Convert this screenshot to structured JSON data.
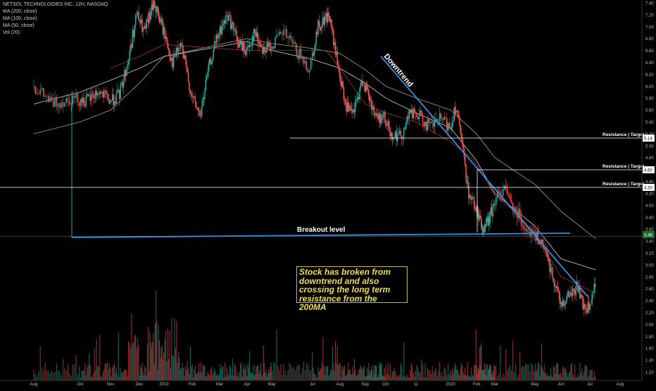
{
  "legend": {
    "title": "NETSOL TECHNOLOGIES INC, 12H, NASDAQ",
    "ma200": "MA (200, close)",
    "ma100": "MA (100, close)",
    "ma50": "MA (50, close)",
    "vol": "Vol (20)"
  },
  "annotations": {
    "downtrend": "Downtrend",
    "breakout": "Breakout level",
    "resistance1": "Resistance | Target",
    "resistance2": "Resistance | Target",
    "resistance3": "Resistance | Target",
    "note": "Stock has broken from downtrend and also crossing the long term resistance from the 200MA"
  },
  "colors": {
    "background": "#000000",
    "up_candle": "#26a69a",
    "down_candle": "#ef5350",
    "ma200": "#c9b46a",
    "ma100": "#e8e8e8",
    "ma50": "#c0392b",
    "trendline": "#2f8fe0",
    "level_line": "#ffffff",
    "note_text": "#f3df4a"
  },
  "chart_data": {
    "type": "candlestick",
    "x_tick_labels": [
      "Aug",
      "Oct",
      "Nov",
      "Dec",
      "2019",
      "Feb",
      "Mar",
      "Apr",
      "May",
      "Jul",
      "Aug",
      "Sep",
      "Oct",
      "11",
      "2020",
      "Feb",
      "Mar",
      "May",
      "Jun",
      "Jul",
      "Aug"
    ],
    "y_tick_labels": [
      "1.20",
      "1.40",
      "1.60",
      "1.80",
      "2.00",
      "2.20",
      "2.40",
      "2.60",
      "2.80",
      "3.00",
      "3.20",
      "3.40",
      "3.60",
      "3.80",
      "4.00",
      "4.20",
      "4.40",
      "4.60",
      "4.80",
      "5.00",
      "5.20",
      "5.40",
      "5.60",
      "5.80",
      "6.00",
      "6.20",
      "6.40",
      "6.60",
      "6.80",
      "7.00",
      "7.20",
      "7.40"
    ],
    "ylim": [
      1.1,
      7.45
    ],
    "price_path": [
      [
        0.0,
        6.0
      ],
      [
        0.4,
        5.7
      ],
      [
        0.8,
        5.8
      ],
      [
        1.2,
        5.75
      ],
      [
        1.6,
        5.9
      ],
      [
        2.0,
        5.75
      ],
      [
        2.3,
        5.85
      ],
      [
        2.6,
        6.4
      ],
      [
        2.9,
        7.2
      ],
      [
        3.2,
        6.9
      ],
      [
        3.6,
        7.4
      ],
      [
        4.0,
        6.9
      ],
      [
        4.3,
        6.4
      ],
      [
        4.6,
        6.7
      ],
      [
        5.0,
        5.8
      ],
      [
        5.3,
        5.5
      ],
      [
        5.6,
        6.3
      ],
      [
        5.9,
        6.8
      ],
      [
        6.3,
        7.2
      ],
      [
        6.7,
        6.7
      ],
      [
        7.0,
        6.6
      ],
      [
        7.3,
        6.9
      ],
      [
        7.7,
        6.6
      ],
      [
        8.0,
        6.7
      ],
      [
        8.3,
        6.9
      ],
      [
        8.6,
        6.6
      ],
      [
        8.9,
        6.3
      ],
      [
        9.2,
        7.0
      ],
      [
        9.6,
        7.2
      ],
      [
        9.9,
        6.4
      ],
      [
        10.2,
        5.7
      ],
      [
        10.5,
        5.5
      ],
      [
        10.9,
        6.1
      ],
      [
        11.3,
        5.7
      ],
      [
        11.6,
        5.45
      ],
      [
        11.9,
        5.5
      ],
      [
        12.2,
        5.2
      ],
      [
        12.5,
        5.15
      ],
      [
        12.8,
        5.55
      ],
      [
        13.1,
        5.5
      ],
      [
        13.4,
        5.3
      ],
      [
        13.7,
        5.45
      ],
      [
        14.0,
        5.3
      ],
      [
        14.2,
        5.7
      ],
      [
        14.4,
        5.15
      ],
      [
        14.7,
        4.2
      ],
      [
        15.0,
        3.95
      ],
      [
        15.3,
        3.6
      ],
      [
        15.6,
        3.7
      ],
      [
        15.9,
        3.95
      ],
      [
        16.2,
        4.3
      ],
      [
        16.5,
        3.95
      ],
      [
        16.8,
        3.6
      ],
      [
        17.1,
        3.45
      ],
      [
        17.4,
        3.2
      ],
      [
        17.7,
        2.8
      ],
      [
        18.0,
        2.35
      ],
      [
        18.3,
        2.5
      ],
      [
        18.6,
        2.65
      ],
      [
        18.8,
        2.25
      ],
      [
        19.0,
        2.3
      ],
      [
        19.2,
        2.7
      ]
    ],
    "breakout_level": 3.48,
    "resistance_targets": [
      5.14,
      4.6,
      4.3
    ],
    "downtrend_line": {
      "start": [
        12.8,
        6.45
      ],
      "end": [
        20.0,
        2.48
      ]
    },
    "ma200": [
      [
        0.0,
        5.2
      ],
      [
        2.0,
        5.6
      ],
      [
        4.0,
        6.5
      ],
      [
        7.0,
        6.8
      ],
      [
        10.0,
        6.55
      ],
      [
        12.0,
        6.0
      ],
      [
        14.0,
        5.6
      ],
      [
        16.0,
        4.8
      ],
      [
        18.0,
        3.9
      ],
      [
        19.3,
        3.4
      ]
    ],
    "ma100": [
      [
        0.0,
        5.7
      ],
      [
        2.0,
        6.1
      ],
      [
        4.0,
        6.5
      ],
      [
        7.0,
        6.75
      ],
      [
        10.0,
        6.3
      ],
      [
        12.0,
        5.8
      ],
      [
        14.0,
        5.3
      ],
      [
        16.0,
        4.2
      ],
      [
        18.0,
        3.1
      ],
      [
        19.3,
        2.9
      ]
    ],
    "ma50": [
      [
        2.0,
        6.3
      ],
      [
        4.0,
        6.7
      ],
      [
        7.0,
        6.6
      ],
      [
        9.5,
        6.6
      ],
      [
        11.0,
        5.7
      ],
      [
        13.0,
        5.4
      ],
      [
        14.8,
        4.8
      ],
      [
        16.5,
        3.9
      ],
      [
        18.0,
        2.8
      ],
      [
        19.3,
        2.5
      ]
    ]
  }
}
